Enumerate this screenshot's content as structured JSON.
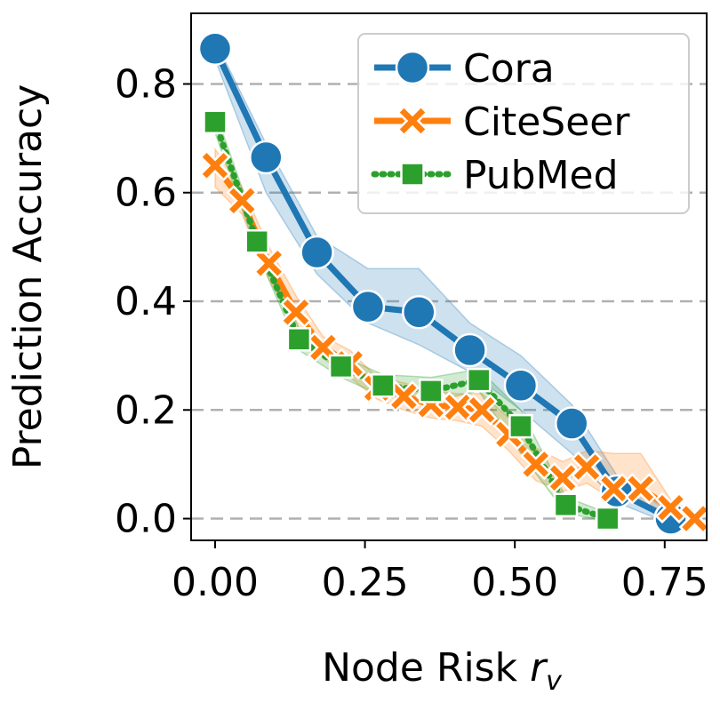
{
  "chart_data": {
    "type": "line",
    "xlabel": "Node Risk r",
    "xlabel_main": "Node Risk ",
    "xlabel_var": "r",
    "xlabel_sub": "v",
    "ylabel": "Prediction Accuracy",
    "xlim": [
      -0.04,
      0.82
    ],
    "ylim": [
      -0.04,
      0.93
    ],
    "xticks": [
      0.0,
      0.25,
      0.5,
      0.75
    ],
    "xtick_labels": [
      "0.00",
      "0.25",
      "0.50",
      "0.75"
    ],
    "yticks": [
      0.0,
      0.2,
      0.4,
      0.6,
      0.8
    ],
    "ytick_labels": [
      "0.0",
      "0.2",
      "0.4",
      "0.6",
      "0.8"
    ],
    "grid": "horizontal dashed",
    "legend_position": "top-right",
    "series": [
      {
        "name": "Cora",
        "color": "#1f77b4",
        "marker": "circle",
        "line_style": "solid",
        "x": [
          0.0,
          0.085,
          0.17,
          0.255,
          0.34,
          0.425,
          0.51,
          0.595,
          0.67,
          0.76
        ],
        "y": [
          0.865,
          0.665,
          0.49,
          0.39,
          0.38,
          0.31,
          0.245,
          0.175,
          0.05,
          0.0
        ],
        "lower": [
          0.845,
          0.6,
          0.45,
          0.36,
          0.32,
          0.27,
          0.2,
          0.12,
          0.03,
          -0.01
        ],
        "upper": [
          0.88,
          0.69,
          0.52,
          0.46,
          0.46,
          0.36,
          0.3,
          0.21,
          0.08,
          0.01
        ]
      },
      {
        "name": "CiteSeer",
        "color": "#ff7f0e",
        "marker": "x",
        "line_style": "solid",
        "x": [
          0.0,
          0.045,
          0.09,
          0.135,
          0.18,
          0.225,
          0.27,
          0.315,
          0.36,
          0.405,
          0.445,
          0.49,
          0.535,
          0.58,
          0.62,
          0.665,
          0.71,
          0.76,
          0.8
        ],
        "y": [
          0.65,
          0.585,
          0.47,
          0.38,
          0.315,
          0.285,
          0.24,
          0.225,
          0.21,
          0.205,
          0.2,
          0.155,
          0.1,
          0.075,
          0.095,
          0.055,
          0.055,
          0.02,
          0.0
        ],
        "lower": [
          0.61,
          0.56,
          0.44,
          0.35,
          0.295,
          0.26,
          0.22,
          0.2,
          0.185,
          0.18,
          0.17,
          0.125,
          0.07,
          0.05,
          0.065,
          0.035,
          0.03,
          0.005,
          -0.005
        ],
        "upper": [
          0.68,
          0.61,
          0.5,
          0.41,
          0.335,
          0.31,
          0.26,
          0.25,
          0.235,
          0.23,
          0.23,
          0.185,
          0.13,
          0.105,
          0.125,
          0.12,
          0.12,
          0.035,
          0.01
        ]
      },
      {
        "name": "PubMed",
        "color": "#2ca02c",
        "marker": "square",
        "line_style": "dotted",
        "x": [
          0.0,
          0.07,
          0.14,
          0.21,
          0.28,
          0.36,
          0.44,
          0.51,
          0.585,
          0.655
        ],
        "y": [
          0.73,
          0.51,
          0.33,
          0.28,
          0.245,
          0.235,
          0.255,
          0.17,
          0.025,
          0.0
        ],
        "lower": [
          0.71,
          0.49,
          0.31,
          0.26,
          0.225,
          0.215,
          0.235,
          0.12,
          0.01,
          -0.005
        ],
        "upper": [
          0.75,
          0.53,
          0.35,
          0.3,
          0.265,
          0.26,
          0.275,
          0.2,
          0.04,
          0.01
        ]
      }
    ]
  }
}
